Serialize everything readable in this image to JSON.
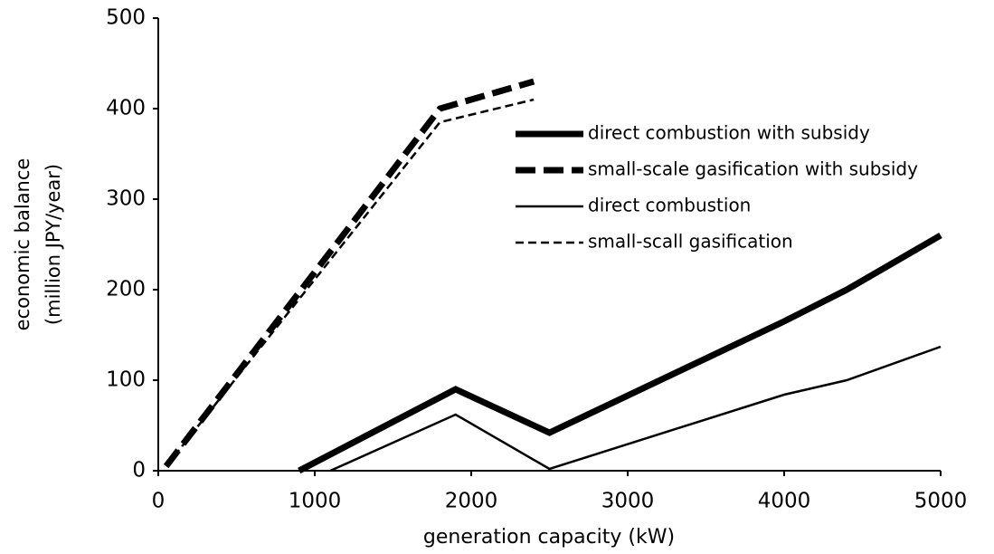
{
  "chart_data": {
    "type": "line",
    "xlabel": "generation capacity (kW)",
    "ylabel": [
      "economic balance",
      "(million JPY/year)"
    ],
    "xlim": [
      0,
      5000
    ],
    "xticks": [
      0,
      1000,
      2000,
      3000,
      4000,
      5000
    ],
    "ylim": [
      0,
      500
    ],
    "yticks": [
      0,
      100,
      200,
      300,
      400,
      500
    ],
    "grid": false,
    "series": [
      {
        "name": "direct combustion with subsidy",
        "color": "#000000",
        "width": 7,
        "dash": "solid",
        "x": [
          900,
          1900,
          2500,
          4000,
          4400,
          5000
        ],
        "values": [
          0,
          90,
          42,
          165,
          200,
          260
        ]
      },
      {
        "name": "small-scale gasification with subsidy",
        "color": "#000000",
        "width": 7,
        "dash": "dashed",
        "x": [
          50,
          1800,
          2400
        ],
        "values": [
          5,
          400,
          430
        ]
      },
      {
        "name": "direct combustion",
        "color": "#000000",
        "width": 2.5,
        "dash": "solid",
        "x": [
          1100,
          1900,
          2500,
          4000,
          4400,
          5000
        ],
        "values": [
          0,
          62,
          2,
          84,
          100,
          137
        ]
      },
      {
        "name": "small-scall gasification",
        "color": "#000000",
        "width": 2.5,
        "dash": "dashed",
        "x": [
          50,
          1800,
          2400
        ],
        "values": [
          5,
          385,
          410
        ]
      }
    ]
  }
}
